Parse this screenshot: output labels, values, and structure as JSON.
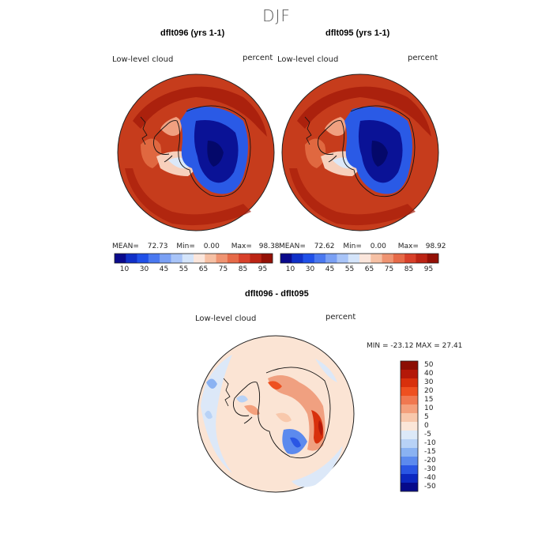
{
  "figure": {
    "season": "DJF"
  },
  "panels": [
    {
      "title": "dflt096 (yrs 1-1)",
      "field": "Low-level cloud",
      "units": "percent",
      "mean_label": "MEAN=",
      "mean": "72.73",
      "min_label": "Min=",
      "min": "0.00",
      "max_label": "Max=",
      "max": "98.38"
    },
    {
      "title": "dflt095 (yrs 1-1)",
      "field": "Low-level cloud",
      "units": "percent",
      "mean_label": "MEAN=",
      "mean": "72.62",
      "min_label": "Min=",
      "min": "0.00",
      "max_label": "Max=",
      "max": "98.92"
    }
  ],
  "diff": {
    "title": "dflt096 - dflt095",
    "field": "Low-level cloud",
    "units": "percent",
    "range_text": "MIN = -23.12  MAX =  27.41"
  },
  "colorbar": {
    "tick_labels": [
      "10",
      "30",
      "45",
      "55",
      "65",
      "75",
      "85",
      "95"
    ],
    "colors": [
      "#0a0a8c",
      "#1030c8",
      "#2050e8",
      "#4a78f0",
      "#7aa0f4",
      "#a8c4f8",
      "#d4e4fa",
      "#fbe6dc",
      "#f6c0a4",
      "#ef9472",
      "#e66a48",
      "#d8402a",
      "#bc2414",
      "#941006"
    ]
  },
  "diff_colorbar": {
    "tick_labels": [
      "50",
      "40",
      "30",
      "20",
      "15",
      "10",
      "5",
      "0",
      "-5",
      "-10",
      "-15",
      "-20",
      "-30",
      "-40",
      "-50"
    ],
    "colors": [
      "#8c0e04",
      "#b41808",
      "#d8300c",
      "#ee5020",
      "#f07850",
      "#f4a07c",
      "#f8c8ac",
      "#fbe6d8",
      "#dce9f8",
      "#b8d2f6",
      "#8ab2f2",
      "#5c8aee",
      "#2a56e4",
      "#0c28c0",
      "#060a8a"
    ]
  },
  "chart_data": [
    {
      "type": "heatmap",
      "title": "dflt096 (yrs 1-1)",
      "subtitle": "Low-level cloud",
      "units": "percent",
      "projection": "south-polar stereographic",
      "stats": {
        "mean": 72.73,
        "min": 0.0,
        "max": 98.38
      },
      "color_levels": [
        10,
        30,
        45,
        55,
        65,
        75,
        85,
        95
      ]
    },
    {
      "type": "heatmap",
      "title": "dflt095 (yrs 1-1)",
      "subtitle": "Low-level cloud",
      "units": "percent",
      "projection": "south-polar stereographic",
      "stats": {
        "mean": 72.62,
        "min": 0.0,
        "max": 98.92
      },
      "color_levels": [
        10,
        30,
        45,
        55,
        65,
        75,
        85,
        95
      ]
    },
    {
      "type": "heatmap",
      "title": "dflt096 - dflt095",
      "subtitle": "Low-level cloud",
      "units": "percent",
      "projection": "south-polar stereographic",
      "stats": {
        "min": -23.12,
        "max": 27.41
      },
      "color_levels": [
        50,
        40,
        30,
        20,
        15,
        10,
        5,
        0,
        -5,
        -10,
        -15,
        -20,
        -30,
        -40,
        -50
      ]
    }
  ]
}
